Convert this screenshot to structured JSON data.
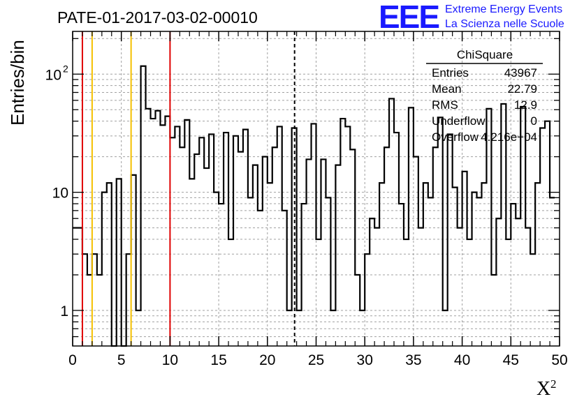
{
  "chart_data": {
    "type": "bar",
    "title": "PATE-01-2017-03-02-00010",
    "xlabel": "X",
    "xlabel_superscript": "2",
    "ylabel": "Entries/bin",
    "xlim": [
      0,
      50
    ],
    "ylim": [
      0.5,
      230
    ],
    "yscale": "log",
    "grid": true,
    "bin_width": 0.5,
    "x_ticks": [
      0,
      5,
      10,
      15,
      20,
      25,
      30,
      35,
      40,
      45,
      50
    ],
    "x_tick_labels": [
      "0",
      "5",
      "10",
      "15",
      "20",
      "25",
      "30",
      "35",
      "40",
      "45",
      "50"
    ],
    "y_tick_labels": [
      {
        "value": 1,
        "label": "1",
        "sup": ""
      },
      {
        "value": 10,
        "label": "10",
        "sup": ""
      },
      {
        "value": 100,
        "label": "10",
        "sup": "2"
      }
    ],
    "bin_counts": [
      5,
      5,
      3,
      2,
      3,
      2,
      10,
      12,
      0,
      13,
      0,
      3,
      14,
      1,
      117,
      51,
      42,
      49,
      37,
      44,
      29,
      36,
      24,
      41,
      13,
      21,
      29,
      16,
      31,
      10,
      8,
      32,
      4,
      30,
      22,
      34,
      9,
      17,
      7,
      20,
      12,
      24,
      36,
      7,
      1,
      35,
      1,
      8,
      19,
      38,
      4,
      19,
      9,
      1,
      17,
      42,
      36,
      23,
      2,
      1,
      3,
      6,
      5,
      12,
      24,
      62,
      32,
      8,
      4,
      52,
      20,
      5,
      12,
      9,
      24,
      43,
      1,
      31,
      11,
      5,
      15,
      4,
      10,
      9,
      12,
      51,
      2,
      6,
      56,
      4,
      8,
      6,
      53,
      5,
      3,
      12,
      35,
      40,
      9
    ],
    "reference_lines": [
      {
        "x": 1,
        "color": "#e00000",
        "style": "solid"
      },
      {
        "x": 2,
        "color": "#f5c000",
        "style": "solid"
      },
      {
        "x": 6,
        "color": "#f5c000",
        "style": "solid"
      },
      {
        "x": 10,
        "color": "#e00000",
        "style": "solid"
      },
      {
        "x": 22.79,
        "color": "#000000",
        "style": "dashed"
      }
    ],
    "stats_box": {
      "title": "ChiSquare",
      "rows": [
        {
          "label": "Entries",
          "value": "43967"
        },
        {
          "label": "Mean",
          "value": "22.79"
        },
        {
          "label": "RMS",
          "value": "12.9"
        },
        {
          "label": "Underflow",
          "value": "0"
        },
        {
          "label": "Overflow",
          "value": "4.216e+04"
        }
      ]
    }
  },
  "logo": {
    "mark": "EEE",
    "line1": "Extreme Energy Events",
    "line2": "La Scienza nelle Scuole",
    "color": "#1a1aff"
  }
}
